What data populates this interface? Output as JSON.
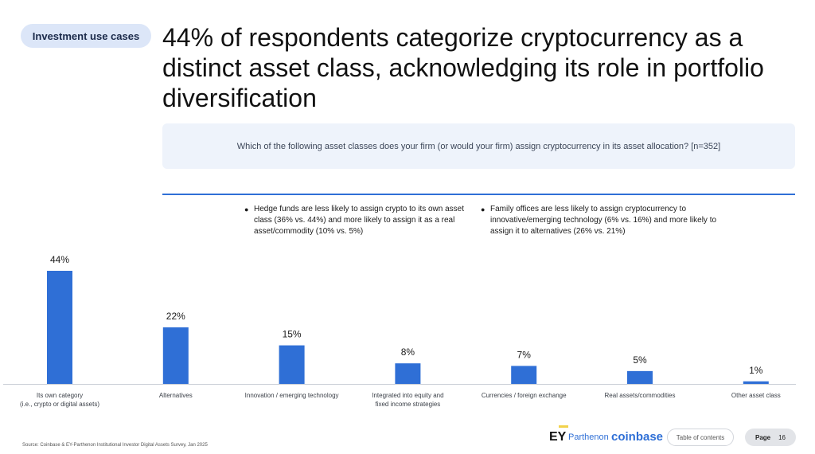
{
  "header": {
    "section_label": "Investment use cases",
    "headline": "44% of respondents categorize cryptocurrency as a distinct asset class, acknowledging its role in portfolio diversification"
  },
  "question": "Which of the following asset classes does your firm (or would your firm) assign cryptocurrency in its asset allocation? [n=352]",
  "notes": [
    "Hedge funds are less likely to assign crypto to its own asset class (36% vs. 44%) and more likely to assign it as a real asset/commodity (10% vs. 5%)",
    "Family offices are less likely to assign cryptocurrency to innovative/emerging technology (6% vs. 16%) and more likely to assign it to alternatives (26% vs. 21%)"
  ],
  "chart_data": {
    "type": "bar",
    "categories": [
      [
        "Its own category",
        "(i.e., crypto or digital assets)"
      ],
      [
        "Alternatives"
      ],
      [
        "Innovation / emerging technology"
      ],
      [
        "Integrated into equity and",
        "fixed income strategies"
      ],
      [
        "Currencies / foreign exchange"
      ],
      [
        "Real assets/commodities"
      ],
      [
        "Other asset class"
      ]
    ],
    "values": [
      44,
      22,
      15,
      8,
      7,
      5,
      1
    ],
    "value_labels": [
      "44%",
      "22%",
      "15%",
      "8%",
      "7%",
      "5%",
      "1%"
    ],
    "unit": "%",
    "bar_color": "#2f6fd6",
    "grid": false
  },
  "footer": {
    "source": "Source: Coinbase & EY-Parthenon Institutional Investor Digital Assets Survey, Jan 2025",
    "brand_ey": "EY",
    "brand_parthenon": "Parthenon",
    "brand_coinbase": "coinbase",
    "toc_label": "Table of contents",
    "page_label": "Page",
    "page_number": "16"
  }
}
